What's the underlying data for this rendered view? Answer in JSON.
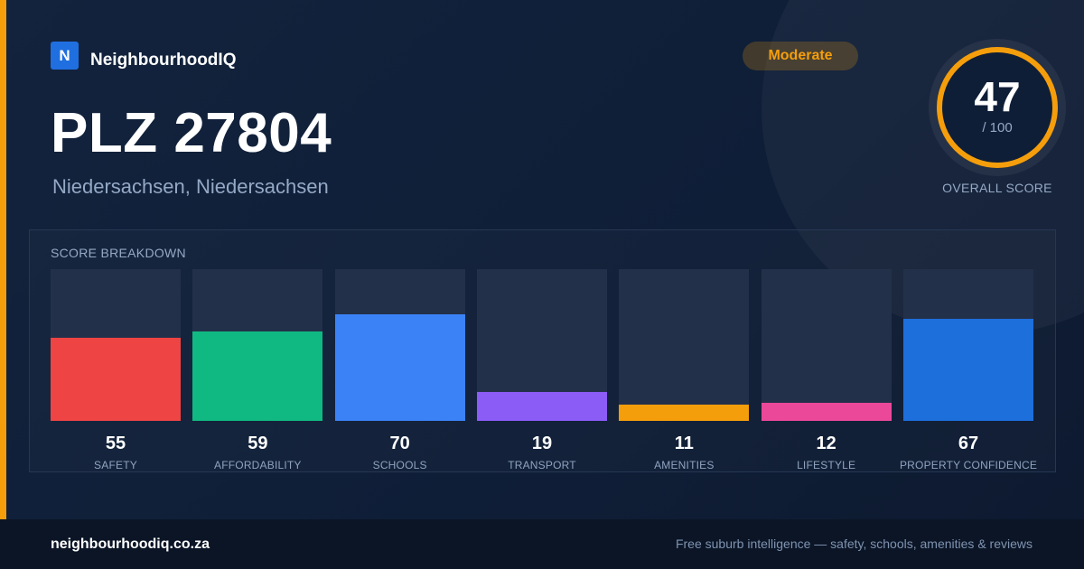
{
  "brand": {
    "logo_letter": "N",
    "name": "NeighbourhoodIQ"
  },
  "location": {
    "title": "PLZ 27804",
    "subtitle": "Niedersachsen, Niedersachsen"
  },
  "badge": {
    "label": "Moderate",
    "color": "#f59e0b"
  },
  "overall": {
    "value": "47",
    "max_label": "/ 100",
    "label": "OVERALL SCORE",
    "ring_color": "#f59e0b"
  },
  "breakdown": {
    "title": "SCORE BREAKDOWN",
    "items": [
      {
        "label": "SAFETY",
        "value": "55",
        "score": 55,
        "color": "#ef4444"
      },
      {
        "label": "AFFORDABILITY",
        "value": "59",
        "score": 59,
        "color": "#10b981"
      },
      {
        "label": "SCHOOLS",
        "value": "70",
        "score": 70,
        "color": "#3b82f6"
      },
      {
        "label": "TRANSPORT",
        "value": "19",
        "score": 19,
        "color": "#8b5cf6"
      },
      {
        "label": "AMENITIES",
        "value": "11",
        "score": 11,
        "color": "#f59e0b"
      },
      {
        "label": "LIFESTYLE",
        "value": "12",
        "score": 12,
        "color": "#ec4899"
      },
      {
        "label": "PROPERTY CONFIDENCE",
        "value": "67",
        "score": 67,
        "color": "#1d6fdc"
      }
    ]
  },
  "footer": {
    "domain": "neighbourhoodiq.co.za",
    "tagline": "Free suburb intelligence — safety, schools, amenities & reviews"
  }
}
